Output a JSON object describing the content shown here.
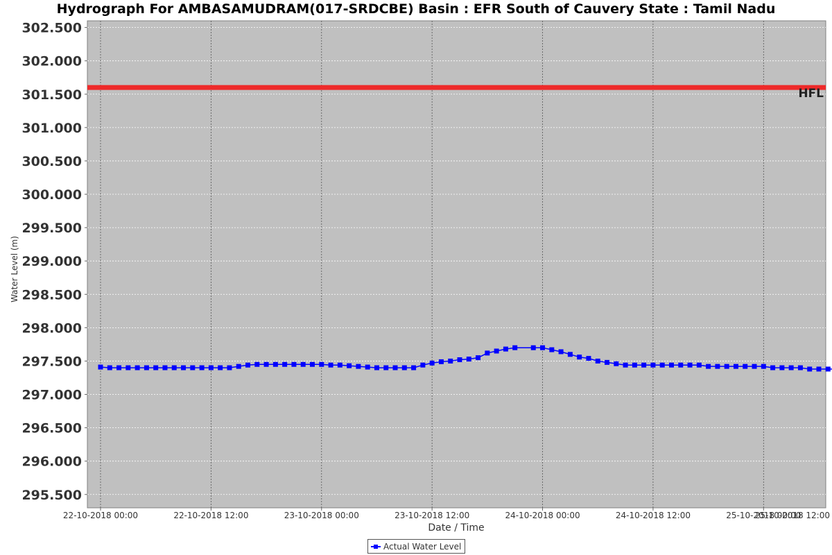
{
  "chart_data": {
    "type": "line",
    "title": "Hydrograph For AMBASAMUDRAM(017-SRDCBE) Basin : EFR South of Cauvery State : Tamil Nadu",
    "xlabel": "Date / Time",
    "ylabel": "Water Level (m)",
    "ylim": [
      295.3,
      302.6
    ],
    "y_ticks": [
      "295.500",
      "296.000",
      "296.500",
      "297.000",
      "297.500",
      "298.000",
      "298.500",
      "299.000",
      "299.500",
      "300.000",
      "300.500",
      "301.000",
      "301.500",
      "302.000",
      "302.500"
    ],
    "x_start": "2018-10-22T00:00",
    "x_end": "2018-10-25T06:00",
    "x_ticks": [
      {
        "t": "2018-10-22T00:00",
        "label": "22-10-2018 00:00"
      },
      {
        "t": "2018-10-22T12:00",
        "label": "22-10-2018 12:00"
      },
      {
        "t": "2018-10-23T00:00",
        "label": "23-10-2018 00:00"
      },
      {
        "t": "2018-10-23T12:00",
        "label": "23-10-2018 12:00"
      },
      {
        "t": "2018-10-24T00:00",
        "label": "24-10-2018 00:00"
      },
      {
        "t": "2018-10-24T12:00",
        "label": "24-10-2018 12:00"
      },
      {
        "t": "2018-10-25T00:00",
        "label": "25-10-2018 00:00"
      },
      {
        "t": "2018-10-25T12:00",
        "label": "25-10-2018 12:00"
      }
    ],
    "grid": true,
    "legend_position": "bottom-center",
    "reference_lines": [
      {
        "name": "HFL",
        "value": 301.6,
        "color": "#ee2a2a"
      }
    ],
    "series": [
      {
        "name": "Actual Water Level",
        "color": "#0000ff",
        "x": [
          "2018-10-22T00:00",
          "2018-10-22T01:00",
          "2018-10-22T02:00",
          "2018-10-22T03:00",
          "2018-10-22T04:00",
          "2018-10-22T05:00",
          "2018-10-22T06:00",
          "2018-10-22T07:00",
          "2018-10-22T08:00",
          "2018-10-22T09:00",
          "2018-10-22T10:00",
          "2018-10-22T11:00",
          "2018-10-22T12:00",
          "2018-10-22T13:00",
          "2018-10-22T14:00",
          "2018-10-22T15:00",
          "2018-10-22T16:00",
          "2018-10-22T17:00",
          "2018-10-22T18:00",
          "2018-10-22T19:00",
          "2018-10-22T20:00",
          "2018-10-22T21:00",
          "2018-10-22T22:00",
          "2018-10-22T23:00",
          "2018-10-23T00:00",
          "2018-10-23T01:00",
          "2018-10-23T02:00",
          "2018-10-23T03:00",
          "2018-10-23T04:00",
          "2018-10-23T05:00",
          "2018-10-23T06:00",
          "2018-10-23T07:00",
          "2018-10-23T08:00",
          "2018-10-23T09:00",
          "2018-10-23T10:00",
          "2018-10-23T11:00",
          "2018-10-23T12:00",
          "2018-10-23T13:00",
          "2018-10-23T14:00",
          "2018-10-23T15:00",
          "2018-10-23T16:00",
          "2018-10-23T17:00",
          "2018-10-23T18:00",
          "2018-10-23T19:00",
          "2018-10-23T20:00",
          "2018-10-23T21:00",
          "2018-10-23T23:00",
          "2018-10-24T00:00",
          "2018-10-24T01:00",
          "2018-10-24T02:00",
          "2018-10-24T03:00",
          "2018-10-24T04:00",
          "2018-10-24T05:00",
          "2018-10-24T06:00",
          "2018-10-24T07:00",
          "2018-10-24T08:00",
          "2018-10-24T09:00",
          "2018-10-24T10:00",
          "2018-10-24T11:00",
          "2018-10-24T12:00",
          "2018-10-24T13:00",
          "2018-10-24T14:00",
          "2018-10-24T15:00",
          "2018-10-24T16:00",
          "2018-10-24T17:00",
          "2018-10-24T18:00",
          "2018-10-24T19:00",
          "2018-10-24T20:00",
          "2018-10-24T21:00",
          "2018-10-24T22:00",
          "2018-10-24T23:00",
          "2018-10-25T00:00",
          "2018-10-25T01:00",
          "2018-10-25T02:00",
          "2018-10-25T03:00",
          "2018-10-25T04:00",
          "2018-10-25T05:00",
          "2018-10-25T06:00",
          "2018-10-25T07:00",
          "2018-10-25T08:00",
          "2018-10-25T09:00",
          "2018-10-25T10:00",
          "2018-10-25T11:00"
        ],
        "y": [
          297.41,
          297.4,
          297.4,
          297.4,
          297.4,
          297.4,
          297.4,
          297.4,
          297.4,
          297.4,
          297.4,
          297.4,
          297.4,
          297.4,
          297.4,
          297.42,
          297.44,
          297.45,
          297.45,
          297.45,
          297.45,
          297.45,
          297.45,
          297.45,
          297.45,
          297.44,
          297.44,
          297.43,
          297.42,
          297.41,
          297.4,
          297.4,
          297.4,
          297.4,
          297.4,
          297.44,
          297.47,
          297.49,
          297.5,
          297.52,
          297.53,
          297.55,
          297.62,
          297.65,
          297.68,
          297.7,
          297.7,
          297.7,
          297.67,
          297.64,
          297.6,
          297.56,
          297.54,
          297.5,
          297.48,
          297.46,
          297.44,
          297.44,
          297.44,
          297.44,
          297.44,
          297.44,
          297.44,
          297.44,
          297.44,
          297.42,
          297.42,
          297.42,
          297.42,
          297.42,
          297.42,
          297.42,
          297.4,
          297.4,
          297.4,
          297.4,
          297.38,
          297.38,
          297.38,
          297.38,
          297.38,
          297.36,
          297.36
        ]
      }
    ]
  }
}
